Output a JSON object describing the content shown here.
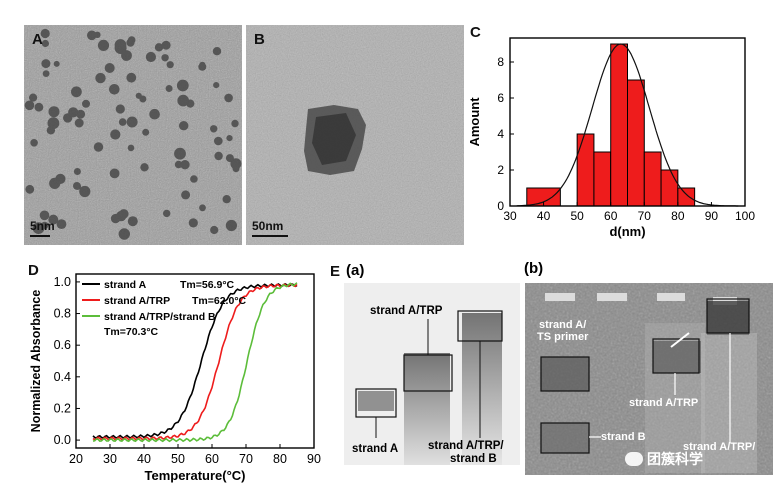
{
  "panels": {
    "a": {
      "letter": "A",
      "scale": "5nm"
    },
    "b": {
      "letter": "B",
      "scale": "50nm"
    },
    "c": {
      "letter": "C"
    },
    "d": {
      "letter": "D"
    },
    "e": {
      "letter": "E",
      "sub_a": "(a)",
      "sub_b": "(b)"
    }
  },
  "gel_a_labels": {
    "strand_a_trp": "strand A/TRP",
    "strand_a": "strand A",
    "strand_a_trp_b_line1": "strand A/TRP/",
    "strand_a_trp_b_line2": "strand B"
  },
  "gel_b_labels": {
    "strand_a_ts_line1": "strand A/",
    "strand_a_ts_line2": "TS primer",
    "strand_b": "strand B",
    "strand_a_trp": "strand A/TRP",
    "strand_a_trp_cut": "strand A/TRP/"
  },
  "watermark": "团簇科学",
  "colors": {
    "bar": "#ee1c1c",
    "black": "#000000",
    "red": "#ee1c1c",
    "green": "#5cbd3a"
  },
  "chart_data": [
    {
      "type": "bar",
      "panel": "C",
      "xlabel": "d(nm)",
      "ylabel": "Amount",
      "xlim": [
        30,
        100
      ],
      "ylim": [
        0,
        9
      ],
      "xticks": [
        "30",
        "40",
        "50",
        "60",
        "70",
        "80",
        "90",
        "100"
      ],
      "yticks": [
        "0",
        "2",
        "4",
        "6",
        "8"
      ],
      "bins": [
        {
          "x0": 35,
          "x1": 45,
          "value": 1
        },
        {
          "x0": 50,
          "x1": 55,
          "value": 4
        },
        {
          "x0": 55,
          "x1": 60,
          "value": 3
        },
        {
          "x0": 60,
          "x1": 65,
          "value": 9
        },
        {
          "x0": 65,
          "x1": 70,
          "value": 7
        },
        {
          "x0": 70,
          "x1": 75,
          "value": 3
        },
        {
          "x0": 75,
          "x1": 80,
          "value": 2
        },
        {
          "x0": 80,
          "x1": 85,
          "value": 1
        }
      ],
      "fit": {
        "type": "gaussian",
        "mean": 63,
        "sd": 8.5,
        "peak": 9
      }
    },
    {
      "type": "line",
      "panel": "D",
      "xlabel": "Temperature(°C)",
      "ylabel": "Normalized Absorbance",
      "xlim": [
        20,
        90
      ],
      "ylim": [
        -0.05,
        1.05
      ],
      "xticks": [
        "20",
        "30",
        "40",
        "50",
        "60",
        "70",
        "80",
        "90"
      ],
      "yticks": [
        "0.0",
        "0.2",
        "0.4",
        "0.6",
        "0.8",
        "1.0"
      ],
      "legend_position": "top-left",
      "series": [
        {
          "name": "strand A",
          "tm_label": "Tm=56.9°C",
          "tm": 56.9,
          "color": "#000000",
          "x_start": 25,
          "x_end": 85,
          "low": 0.02,
          "high": 0.98,
          "width": 3.2
        },
        {
          "name": "strand A/TRP",
          "tm_label": "Tm=62.0°C",
          "tm": 62.0,
          "color": "#ee1c1c",
          "x_start": 25,
          "x_end": 85,
          "low": 0.01,
          "high": 0.98,
          "width": 3.0
        },
        {
          "name": "strand A/TRP/strand B",
          "tm_label": "Tm=70.3°C",
          "tm": 70.3,
          "color": "#5cbd3a",
          "x_start": 25,
          "x_end": 85,
          "low": 0.0,
          "high": 0.99,
          "width": 2.6
        }
      ]
    }
  ]
}
